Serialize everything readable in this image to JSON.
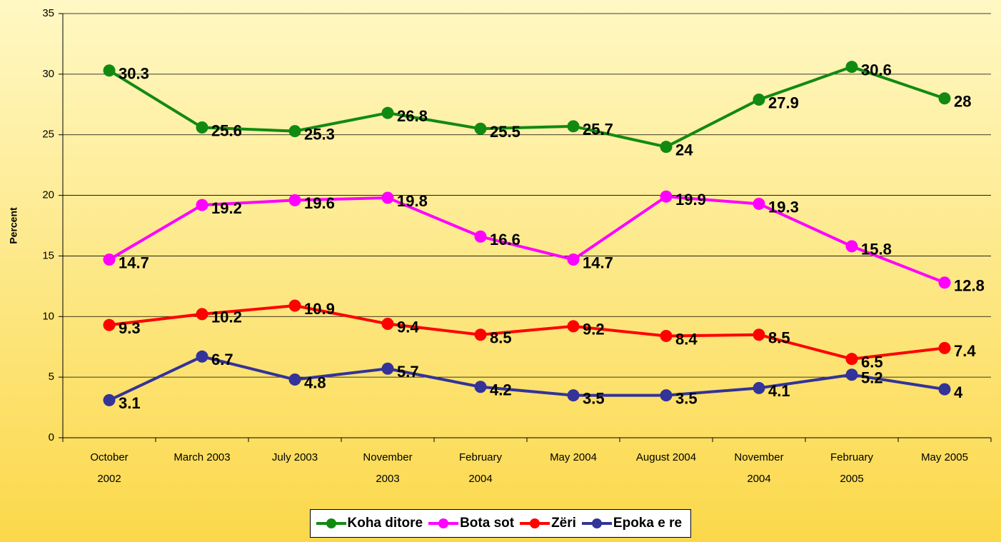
{
  "chart_data": {
    "type": "line",
    "y_label": "Percent",
    "categories": [
      "October 2002",
      "March 2003",
      "July 2003",
      "November 2003",
      "February 2004",
      "May 2004",
      "August 2004",
      "November 2004",
      "February 2005",
      "May 2005"
    ],
    "series": [
      {
        "name": "Koha ditore",
        "color": "#128a12",
        "values": [
          30.3,
          25.6,
          25.3,
          26.8,
          25.5,
          25.7,
          24,
          27.9,
          30.6,
          28
        ]
      },
      {
        "name": "Bota sot",
        "color": "#ff00ff",
        "values": [
          14.7,
          19.2,
          19.6,
          19.8,
          16.6,
          14.7,
          19.9,
          19.3,
          15.8,
          12.8
        ]
      },
      {
        "name": "Zëri",
        "color": "#ff0000",
        "values": [
          9.3,
          10.2,
          10.9,
          9.4,
          8.5,
          9.2,
          8.4,
          8.5,
          6.5,
          7.4
        ]
      },
      {
        "name": "Epoka e re",
        "color": "#333399",
        "values": [
          3.1,
          6.7,
          4.8,
          5.7,
          4.2,
          3.5,
          3.5,
          4.1,
          5.2,
          4
        ]
      }
    ],
    "ylim": [
      0,
      35
    ],
    "yticks": [
      0,
      5,
      10,
      15,
      20,
      25,
      30,
      35
    ],
    "grid": true,
    "legend": "bottom"
  }
}
